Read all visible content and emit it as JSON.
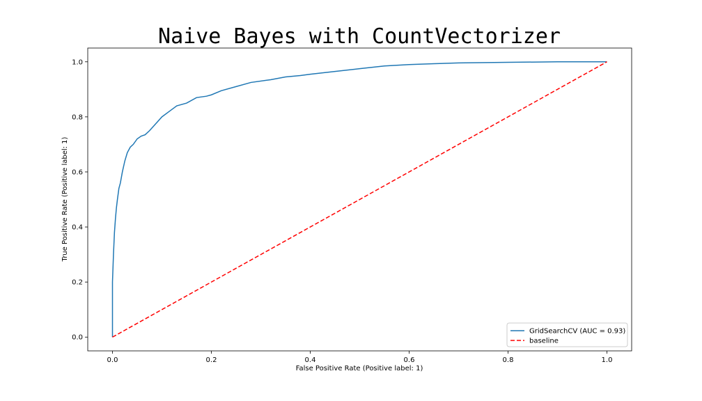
{
  "chart_data": {
    "type": "line",
    "title": "Naive Bayes with CountVectorizer",
    "xlabel": "False Positive Rate (Positive label: 1)",
    "ylabel": "True Positive Rate (Positive label: 1)",
    "xlim": [
      -0.05,
      1.05
    ],
    "ylim": [
      -0.05,
      1.05
    ],
    "xticks": [
      0.0,
      0.2,
      0.4,
      0.6,
      0.8,
      1.0
    ],
    "yticks": [
      0.0,
      0.2,
      0.4,
      0.6,
      0.8,
      1.0
    ],
    "xtick_labels": [
      "0.0",
      "0.2",
      "0.4",
      "0.6",
      "0.8",
      "1.0"
    ],
    "ytick_labels": [
      "0.0",
      "0.2",
      "0.4",
      "0.6",
      "0.8",
      "1.0"
    ],
    "grid": false,
    "legend_position": "bottom-right",
    "series": [
      {
        "name": "GridSearchCV (AUC = 0.93)",
        "color": "#1f77b4",
        "style": "solid",
        "x": [
          0.0,
          0.0,
          0.002,
          0.004,
          0.006,
          0.008,
          0.01,
          0.013,
          0.016,
          0.02,
          0.025,
          0.03,
          0.036,
          0.042,
          0.05,
          0.058,
          0.066,
          0.075,
          0.085,
          0.1,
          0.115,
          0.13,
          0.15,
          0.17,
          0.19,
          0.2,
          0.22,
          0.25,
          0.28,
          0.32,
          0.35,
          0.38,
          0.4,
          0.45,
          0.5,
          0.55,
          0.6,
          0.65,
          0.7,
          0.8,
          0.9,
          1.0
        ],
        "y": [
          0.0,
          0.2,
          0.3,
          0.38,
          0.43,
          0.47,
          0.5,
          0.54,
          0.56,
          0.6,
          0.64,
          0.67,
          0.69,
          0.7,
          0.72,
          0.73,
          0.735,
          0.75,
          0.77,
          0.8,
          0.82,
          0.84,
          0.85,
          0.87,
          0.875,
          0.88,
          0.895,
          0.91,
          0.925,
          0.935,
          0.945,
          0.95,
          0.955,
          0.965,
          0.975,
          0.985,
          0.99,
          0.993,
          0.996,
          0.998,
          1.0,
          1.0
        ]
      },
      {
        "name": "baseline",
        "color": "#ff0000",
        "style": "dashed",
        "x": [
          0.0,
          1.0
        ],
        "y": [
          0.0,
          1.0
        ]
      }
    ]
  }
}
